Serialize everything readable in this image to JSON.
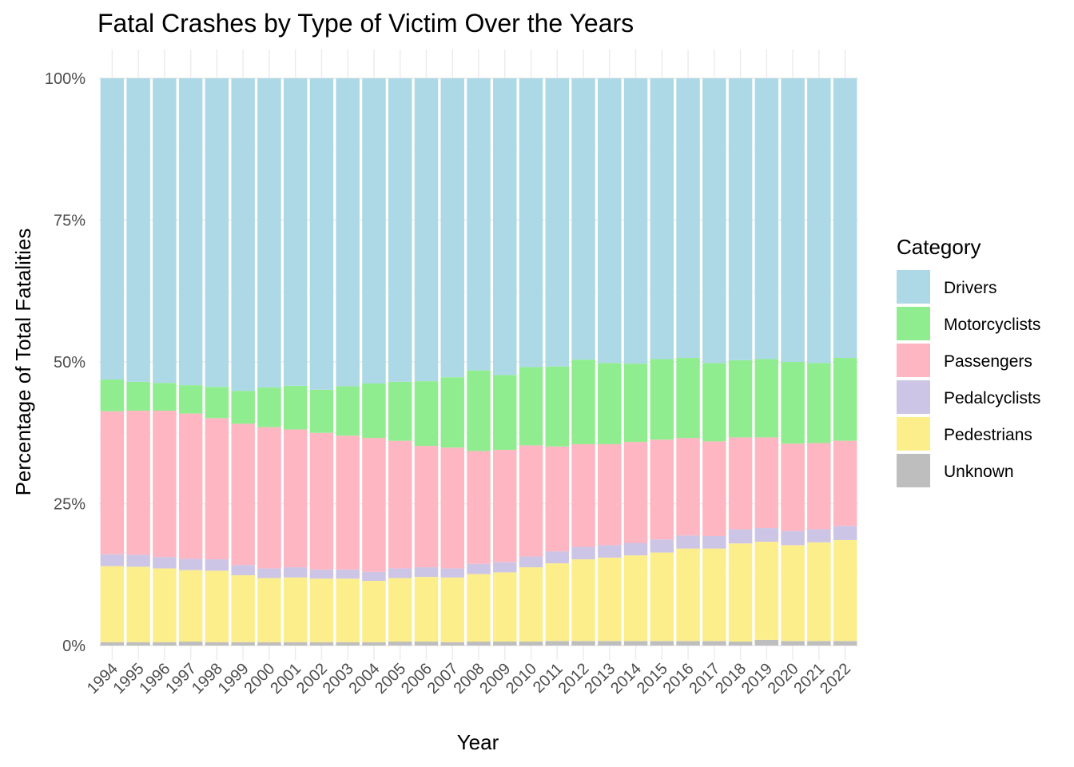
{
  "chart_data": {
    "type": "bar",
    "stacked": true,
    "normalized": true,
    "title": "Fatal Crashes by Type of Victim Over the Years",
    "xlabel": "Year",
    "ylabel": "Percentage of Total Fatalities",
    "ylim": [
      0,
      1
    ],
    "yticks": [
      "0%",
      "25%",
      "50%",
      "75%",
      "100%"
    ],
    "grid": true,
    "legend": {
      "title": "Category",
      "placement": "right"
    },
    "categories": [
      "1994",
      "1995",
      "1996",
      "1997",
      "1998",
      "1999",
      "2000",
      "2001",
      "2002",
      "2003",
      "2004",
      "2005",
      "2006",
      "2007",
      "2008",
      "2009",
      "2010",
      "2011",
      "2012",
      "2013",
      "2014",
      "2015",
      "2016",
      "2017",
      "2018",
      "2019",
      "2020",
      "2021",
      "2022"
    ],
    "series": [
      {
        "name": "Unknown",
        "color": "#bebebe",
        "values": [
          0.006,
          0.006,
          0.006,
          0.007,
          0.006,
          0.006,
          0.006,
          0.006,
          0.006,
          0.006,
          0.006,
          0.007,
          0.007,
          0.006,
          0.007,
          0.007,
          0.007,
          0.008,
          0.008,
          0.008,
          0.008,
          0.008,
          0.008,
          0.008,
          0.007,
          0.01,
          0.008,
          0.008,
          0.008
        ]
      },
      {
        "name": "Pedestrians",
        "color": "#fdee8c",
        "values": [
          0.134,
          0.133,
          0.13,
          0.126,
          0.126,
          0.118,
          0.113,
          0.114,
          0.112,
          0.112,
          0.108,
          0.112,
          0.114,
          0.114,
          0.119,
          0.122,
          0.131,
          0.137,
          0.144,
          0.147,
          0.151,
          0.156,
          0.163,
          0.163,
          0.173,
          0.173,
          0.169,
          0.174,
          0.178
        ]
      },
      {
        "name": "Pedalcyclists",
        "color": "#cdc5e6",
        "values": [
          0.021,
          0.021,
          0.02,
          0.02,
          0.02,
          0.018,
          0.017,
          0.018,
          0.016,
          0.016,
          0.016,
          0.017,
          0.017,
          0.016,
          0.018,
          0.018,
          0.019,
          0.021,
          0.022,
          0.022,
          0.022,
          0.023,
          0.023,
          0.022,
          0.025,
          0.024,
          0.025,
          0.023,
          0.025
        ]
      },
      {
        "name": "Passengers",
        "color": "#feb6c2",
        "values": [
          0.252,
          0.254,
          0.258,
          0.256,
          0.249,
          0.249,
          0.249,
          0.243,
          0.241,
          0.236,
          0.236,
          0.225,
          0.214,
          0.213,
          0.199,
          0.198,
          0.196,
          0.185,
          0.181,
          0.178,
          0.178,
          0.176,
          0.172,
          0.167,
          0.162,
          0.16,
          0.154,
          0.152,
          0.15
        ]
      },
      {
        "name": "Motorcyclists",
        "color": "#90ed8f",
        "values": [
          0.056,
          0.051,
          0.049,
          0.05,
          0.055,
          0.058,
          0.07,
          0.077,
          0.076,
          0.087,
          0.096,
          0.104,
          0.114,
          0.124,
          0.142,
          0.132,
          0.138,
          0.141,
          0.149,
          0.143,
          0.138,
          0.142,
          0.141,
          0.138,
          0.136,
          0.138,
          0.144,
          0.141,
          0.146
        ]
      },
      {
        "name": "Drivers",
        "color": "#add8e6",
        "values": [
          0.531,
          0.535,
          0.537,
          0.541,
          0.544,
          0.551,
          0.545,
          0.542,
          0.549,
          0.543,
          0.538,
          0.535,
          0.534,
          0.527,
          0.515,
          0.523,
          0.509,
          0.508,
          0.496,
          0.502,
          0.503,
          0.495,
          0.493,
          0.502,
          0.497,
          0.495,
          0.5,
          0.502,
          0.493
        ]
      }
    ]
  },
  "legend_order": [
    "Drivers",
    "Motorcyclists",
    "Passengers",
    "Pedalcyclists",
    "Pedestrians",
    "Unknown"
  ]
}
